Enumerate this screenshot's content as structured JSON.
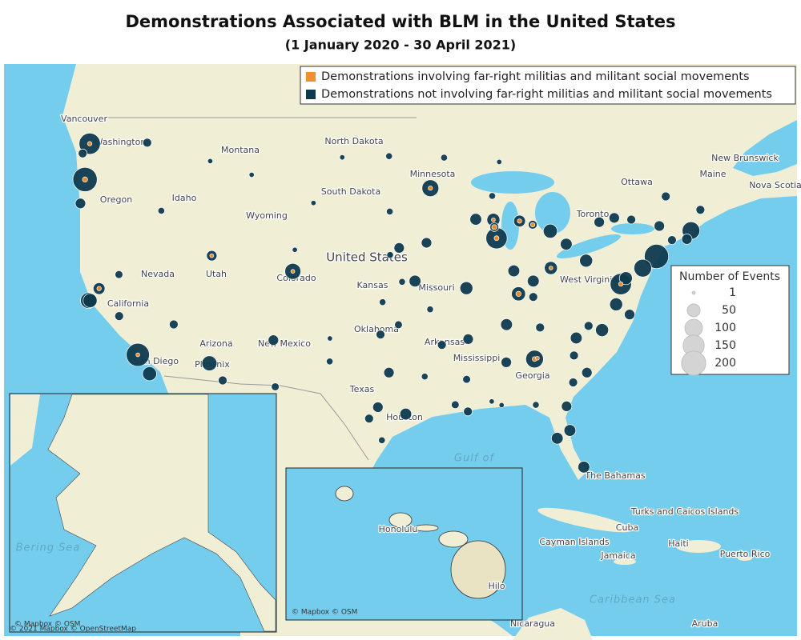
{
  "chart_data": {
    "type": "bubble-map",
    "title": "Demonstrations Associated with BLM in the United States",
    "subtitle": "(1 January 2020 - 30 April 2021)",
    "series": [
      {
        "name": "Demonstrations involving far-right militias and militant social movements",
        "color": "#f28e2b",
        "lon": [
          -122.7,
          -122.3,
          -111.9,
          -93.27,
          -87.63,
          -87.82,
          -85.67,
          -85.76,
          -83.0,
          -84.39,
          -77.04,
          -121.5,
          -118.2,
          -84.15,
          -104.99,
          -84.55,
          -87.9
        ],
        "lat": [
          45.5,
          47.6,
          40.76,
          44.98,
          41.88,
          42.58,
          42.96,
          38.25,
          39.96,
          33.75,
          38.9,
          38.6,
          34.05,
          33.81,
          39.74,
          42.73,
          43.04
        ],
        "values": [
          5,
          3,
          2,
          3,
          4,
          5,
          3,
          5,
          2,
          4,
          3,
          3,
          2,
          2,
          2,
          3,
          2
        ]
      },
      {
        "name": "Demonstrations not involving far-right militias and militant social movements",
        "color": "#0e3a4e",
        "lon": [
          -122.3,
          -122.7,
          -118.2,
          -122.4,
          -122.27,
          -121.5,
          -117.2,
          -112.1,
          -104.99,
          -111.9,
          -93.27,
          -87.63,
          -83.05,
          -87.9,
          -83.0,
          -84.5,
          -86.16,
          -90.2,
          -94.58,
          -85.76,
          -86.78,
          -84.39,
          -95.37,
          -96.8,
          -97.74,
          -98.49,
          -106.65,
          -95.93,
          -95.99,
          -97.52,
          -90.05,
          -90.07,
          -81.38,
          -80.19,
          -82.46,
          -81.66,
          -80.84,
          -78.64,
          -77.44,
          -77.04,
          -76.61,
          -75.17,
          -74.0,
          -71.06,
          -80.0,
          -78.88,
          -81.69,
          -115.14,
          -116.2,
          -117.4,
          -123.09,
          -73.76,
          -73.21,
          -70.26,
          -108.5,
          -96.79,
          -96.73,
          -93.6,
          -89.4,
          -85.67,
          -84.55,
          -86.8,
          -90.18,
          -92.29,
          -97.34,
          -110.97,
          -106.49,
          -119.79,
          -84.5,
          -83.92,
          -79.93,
          -81.1,
          -76.29,
          -87.82,
          -122.9,
          -77.6,
          -76.15,
          -72.68,
          -71.41,
          -79.79,
          -81.03,
          -91.15,
          -93.75,
          -101.85,
          -101.83,
          -119.81,
          -112.03,
          -100.78,
          -103.23,
          -104.82,
          -96.7,
          -95.68,
          -93.29,
          -92.1,
          -88.0,
          -87.4,
          -97.4,
          -84.28,
          -87.2,
          -88.04
        ],
        "lat": [
          47.6,
          45.5,
          34.05,
          37.8,
          37.8,
          38.6,
          32.7,
          33.45,
          39.74,
          40.76,
          44.98,
          41.88,
          42.33,
          43.04,
          39.96,
          39.1,
          39.77,
          38.63,
          39.1,
          38.25,
          36.16,
          33.75,
          29.76,
          32.78,
          30.27,
          29.42,
          35.08,
          41.26,
          36.15,
          35.47,
          35.15,
          29.95,
          28.54,
          25.76,
          27.95,
          30.33,
          35.23,
          35.78,
          37.54,
          38.9,
          39.29,
          39.95,
          40.71,
          42.36,
          40.44,
          42.89,
          41.5,
          36.17,
          43.6,
          47.66,
          44.05,
          42.65,
          44.48,
          43.66,
          45.78,
          46.88,
          43.55,
          41.59,
          43.07,
          42.96,
          42.73,
          33.52,
          32.3,
          34.75,
          37.69,
          32.22,
          31.76,
          36.74,
          38.04,
          35.96,
          32.78,
          32.08,
          36.85,
          42.58,
          47.04,
          43.16,
          43.05,
          41.76,
          41.82,
          36.07,
          34.0,
          30.45,
          32.5,
          33.58,
          35.2,
          39.53,
          46.59,
          46.81,
          44.08,
          41.14,
          40.81,
          39.05,
          37.2,
          46.79,
          44.51,
          46.54,
          27.8,
          30.44,
          30.42,
          30.69
        ],
        "values": [
          150,
          200,
          180,
          80,
          60,
          40,
          60,
          70,
          80,
          30,
          90,
          150,
          60,
          50,
          50,
          40,
          40,
          50,
          40,
          60,
          40,
          100,
          40,
          30,
          30,
          20,
          30,
          30,
          15,
          20,
          30,
          20,
          40,
          40,
          40,
          30,
          40,
          50,
          50,
          150,
          50,
          100,
          200,
          100,
          50,
          30,
          40,
          20,
          10,
          20,
          30,
          30,
          20,
          20,
          5,
          10,
          10,
          30,
          40,
          40,
          20,
          30,
          15,
          20,
          10,
          20,
          15,
          20,
          20,
          20,
          30,
          20,
          30,
          20,
          20,
          30,
          20,
          20,
          30,
          20,
          20,
          15,
          10,
          10,
          5,
          15,
          5,
          5,
          5,
          5,
          10,
          10,
          10,
          10,
          10,
          5,
          10,
          10,
          5,
          5
        ]
      }
    ],
    "size_legend": {
      "title": "Number of Events",
      "values": [
        1,
        50,
        100,
        150,
        200
      ]
    }
  },
  "map_labels": [
    "Vancouver",
    "Washington",
    "Montana",
    "North Dakota",
    "South Dakota",
    "Minnesota",
    "Oregon",
    "Idaho",
    "Wyoming",
    "Nevada",
    "Utah",
    "Colorado",
    "United States",
    "Kansas",
    "Missouri",
    "California",
    "Arizona",
    "New Mexico",
    "Oklahoma",
    "Arkansas",
    "Texas",
    "Mississippi",
    "Georgia",
    "Houston",
    "West Virginia",
    "Ottawa",
    "Toronto",
    "Maine",
    "New Brunswick",
    "Nova Scotia",
    "Phoenix",
    "San Diego",
    "The Bahamas",
    "Turks and Caicos Islands",
    "Cuba",
    "Cayman Islands",
    "Jamaica",
    "Haiti",
    "Puerto Rico",
    "Nicaragua",
    "Aruba",
    "Honolulu",
    "Hilo"
  ],
  "water_labels": [
    "Gulf of",
    "Caribbean Sea",
    "Bering Sea"
  ],
  "attribution": "© 2021 Mapbox © OpenStreetMap",
  "inset_attribution": "© Mapbox © OSM"
}
